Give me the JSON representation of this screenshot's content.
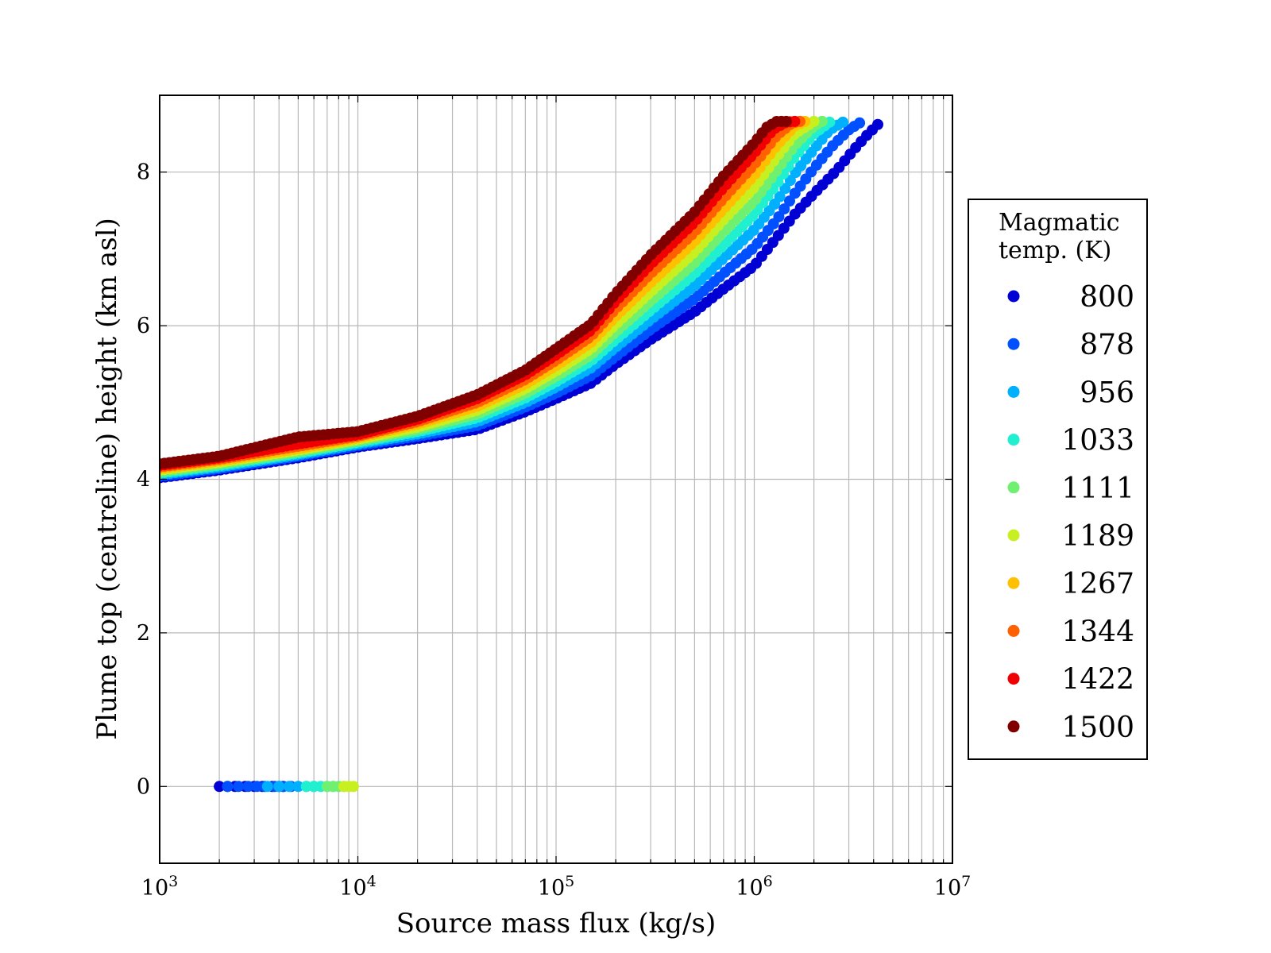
{
  "chart_data": {
    "type": "scatter",
    "title": "",
    "xlabel": "Source mass flux (kg/s)",
    "ylabel": "Plume top (centreline) height (km asl)",
    "x_scale": "log",
    "xlim": [
      1000,
      10000000
    ],
    "ylim": [
      -1,
      9
    ],
    "x_ticks": [
      {
        "value": 1000,
        "base": "10",
        "exp": "3"
      },
      {
        "value": 10000,
        "base": "10",
        "exp": "4"
      },
      {
        "value": 100000,
        "base": "10",
        "exp": "5"
      },
      {
        "value": 1000000,
        "base": "10",
        "exp": "6"
      },
      {
        "value": 10000000,
        "base": "10",
        "exp": "7"
      }
    ],
    "y_ticks": [
      0,
      2,
      4,
      6,
      8
    ],
    "grid": true,
    "legend": {
      "title_lines": [
        "Magmatic",
        "temp. (K)"
      ],
      "placement": "outside-right"
    },
    "series": [
      {
        "name": "800",
        "color": "#0000d4",
        "x": [
          1000,
          2000,
          5000,
          10000,
          20000,
          40000,
          70000,
          100000,
          150000,
          200000,
          300000,
          500000,
          700000,
          1000000,
          1300000,
          1600000,
          2000000,
          2600000,
          3200000,
          3700000,
          4200000
        ],
        "y": [
          4.02,
          4.12,
          4.28,
          4.42,
          4.53,
          4.65,
          4.88,
          5.05,
          5.25,
          5.5,
          5.82,
          6.18,
          6.48,
          6.78,
          7.15,
          7.45,
          7.72,
          8.02,
          8.3,
          8.48,
          8.62
        ],
        "ground_x": [
          2000,
          2200,
          2400,
          2700,
          3000,
          3300,
          3700,
          4000,
          4200
        ],
        "ground_y": [
          0,
          0,
          0,
          0,
          0,
          0,
          0,
          0,
          0
        ]
      },
      {
        "name": "878",
        "color": "#0050ff",
        "x": [
          1000,
          2000,
          5000,
          10000,
          20000,
          40000,
          70000,
          100000,
          150000,
          200000,
          300000,
          500000,
          700000,
          1000000,
          1300000,
          1600000,
          2000000,
          2500000,
          3000000,
          3400000
        ],
        "y": [
          4.04,
          4.14,
          4.3,
          4.44,
          4.56,
          4.7,
          4.94,
          5.12,
          5.35,
          5.6,
          5.95,
          6.35,
          6.68,
          7.02,
          7.38,
          7.72,
          8.05,
          8.35,
          8.55,
          8.64
        ],
        "ground_x": [
          2200,
          2500,
          2800,
          3100,
          3400,
          3800,
          4200,
          4600
        ],
        "ground_y": [
          0,
          0,
          0,
          0,
          0,
          0,
          0,
          0
        ]
      },
      {
        "name": "956",
        "color": "#00b0ff",
        "x": [
          1000,
          2000,
          5000,
          10000,
          20000,
          40000,
          70000,
          100000,
          150000,
          200000,
          300000,
          500000,
          700000,
          1000000,
          1300000,
          1600000,
          2000000,
          2400000,
          2800000
        ],
        "y": [
          4.06,
          4.16,
          4.32,
          4.46,
          4.59,
          4.75,
          5.0,
          5.2,
          5.45,
          5.72,
          6.08,
          6.52,
          6.88,
          7.25,
          7.62,
          7.98,
          8.3,
          8.55,
          8.65
        ],
        "ground_x": [
          3500,
          4000,
          4500,
          5000,
          5500,
          6000
        ],
        "ground_y": [
          0,
          0,
          0,
          0,
          0,
          0
        ]
      },
      {
        "name": "1033",
        "color": "#20f0d0",
        "x": [
          1000,
          2000,
          5000,
          10000,
          20000,
          40000,
          70000,
          100000,
          150000,
          200000,
          300000,
          500000,
          700000,
          1000000,
          1300000,
          1600000,
          2000000,
          2400000
        ],
        "y": [
          4.08,
          4.18,
          4.34,
          4.48,
          4.62,
          4.8,
          5.06,
          5.27,
          5.54,
          5.82,
          6.2,
          6.68,
          7.05,
          7.45,
          7.85,
          8.2,
          8.5,
          8.65
        ],
        "ground_x": [
          5500,
          6000,
          6500,
          7000,
          7500
        ],
        "ground_y": [
          0,
          0,
          0,
          0,
          0
        ]
      },
      {
        "name": "1111",
        "color": "#70f070",
        "x": [
          1000,
          2000,
          5000,
          10000,
          20000,
          40000,
          70000,
          100000,
          150000,
          200000,
          300000,
          500000,
          700000,
          1000000,
          1300000,
          1600000,
          2000000,
          2200000
        ],
        "y": [
          4.1,
          4.2,
          4.36,
          4.5,
          4.65,
          4.85,
          5.12,
          5.34,
          5.62,
          5.92,
          6.32,
          6.82,
          7.22,
          7.62,
          8.02,
          8.35,
          8.6,
          8.66
        ],
        "ground_x": [
          7000,
          7500,
          8000,
          8500
        ],
        "ground_y": [
          0,
          0,
          0,
          0
        ]
      },
      {
        "name": "1189",
        "color": "#c8f020",
        "x": [
          1000,
          2000,
          5000,
          10000,
          20000,
          40000,
          70000,
          100000,
          150000,
          200000,
          300000,
          500000,
          700000,
          1000000,
          1300000,
          1600000,
          2000000
        ],
        "y": [
          4.12,
          4.22,
          4.38,
          4.52,
          4.68,
          4.9,
          5.18,
          5.41,
          5.7,
          6.02,
          6.44,
          6.96,
          7.38,
          7.8,
          8.2,
          8.5,
          8.66
        ],
        "ground_x": [
          8500,
          9000,
          9500
        ],
        "ground_y": [
          0,
          0,
          0
        ]
      },
      {
        "name": "1267",
        "color": "#ffc000",
        "x": [
          1000,
          2000,
          5000,
          10000,
          20000,
          40000,
          70000,
          100000,
          150000,
          200000,
          300000,
          500000,
          700000,
          1000000,
          1300000,
          1600000,
          1800000
        ],
        "y": [
          4.14,
          4.24,
          4.4,
          4.54,
          4.72,
          4.95,
          5.24,
          5.48,
          5.78,
          6.12,
          6.56,
          7.1,
          7.52,
          7.96,
          8.35,
          8.6,
          8.66
        ],
        "ground_x": [],
        "ground_y": []
      },
      {
        "name": "1344",
        "color": "#ff6000",
        "x": [
          1000,
          2000,
          5000,
          10000,
          20000,
          40000,
          70000,
          100000,
          150000,
          200000,
          300000,
          500000,
          700000,
          1000000,
          1300000,
          1550000,
          1700000
        ],
        "y": [
          4.16,
          4.26,
          4.43,
          4.56,
          4.75,
          5.0,
          5.3,
          5.55,
          5.86,
          6.22,
          6.68,
          7.22,
          7.66,
          8.1,
          8.48,
          8.64,
          8.66
        ],
        "ground_x": [],
        "ground_y": []
      },
      {
        "name": "1422",
        "color": "#f00000",
        "x": [
          1000,
          2000,
          5000,
          10000,
          20000,
          40000,
          70000,
          100000,
          150000,
          200000,
          300000,
          500000,
          700000,
          1000000,
          1250000,
          1450000,
          1600000
        ],
        "y": [
          4.18,
          4.28,
          4.46,
          4.58,
          4.78,
          5.05,
          5.36,
          5.62,
          5.94,
          6.32,
          6.8,
          7.35,
          7.8,
          8.25,
          8.56,
          8.65,
          8.66
        ],
        "ground_x": [],
        "ground_y": []
      },
      {
        "name": "1500",
        "color": "#800000",
        "x": [
          1000,
          2000,
          5000,
          10000,
          20000,
          40000,
          70000,
          100000,
          150000,
          200000,
          300000,
          500000,
          700000,
          1000000,
          1150000,
          1300000,
          1450000
        ],
        "y": [
          4.2,
          4.3,
          4.55,
          4.62,
          4.82,
          5.1,
          5.42,
          5.7,
          6.02,
          6.42,
          6.92,
          7.48,
          7.95,
          8.38,
          8.58,
          8.66,
          8.66
        ],
        "ground_x": [],
        "ground_y": []
      }
    ]
  }
}
